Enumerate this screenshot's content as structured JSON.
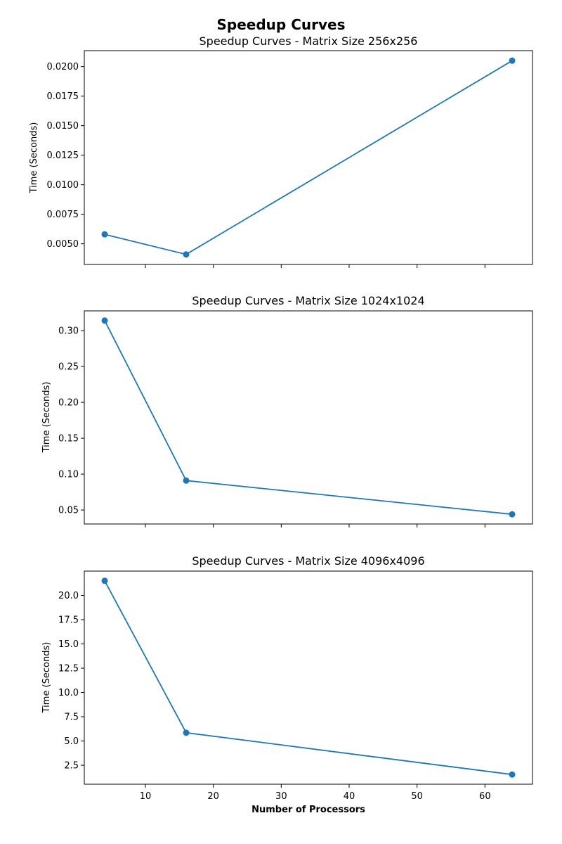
{
  "figure": {
    "title": "Speedup Curves",
    "xlabel": "Number of Processors",
    "series_color": "#1f77b4"
  },
  "chart_data": [
    {
      "type": "line",
      "title": "Speedup Curves - Matrix Size 256x256",
      "xlabel": "",
      "ylabel": "Time (Seconds)",
      "x": [
        4,
        16,
        64
      ],
      "y": [
        0.0058,
        0.0041,
        0.0205
      ],
      "xlim": [
        1,
        67
      ],
      "ylim": [
        0.00325,
        0.02135
      ],
      "xticks": [
        10,
        20,
        30,
        40,
        50,
        60
      ],
      "xtick_labels_visible": false,
      "yticks": [
        0.005,
        0.0075,
        0.01,
        0.0125,
        0.015,
        0.0175,
        0.02
      ],
      "ytick_labels": [
        "0.0050",
        "0.0075",
        "0.0100",
        "0.0125",
        "0.0150",
        "0.0175",
        "0.0200"
      ],
      "grid": false
    },
    {
      "type": "line",
      "title": "Speedup Curves - Matrix Size 1024x1024",
      "xlabel": "",
      "ylabel": "Time (Seconds)",
      "x": [
        4,
        16,
        64
      ],
      "y": [
        0.314,
        0.091,
        0.044
      ],
      "xlim": [
        1,
        67
      ],
      "ylim": [
        0.0305,
        0.3275
      ],
      "xticks": [
        10,
        20,
        30,
        40,
        50,
        60
      ],
      "xtick_labels_visible": false,
      "yticks": [
        0.05,
        0.1,
        0.15,
        0.2,
        0.25,
        0.3
      ],
      "ytick_labels": [
        "0.05",
        "0.10",
        "0.15",
        "0.20",
        "0.25",
        "0.30"
      ],
      "grid": false
    },
    {
      "type": "line",
      "title": "Speedup Curves - Matrix Size 4096x4096",
      "xlabel": "Number of Processors",
      "ylabel": "Time (Seconds)",
      "x": [
        4,
        16,
        64
      ],
      "y": [
        21.5,
        5.85,
        1.55
      ],
      "xlim": [
        1,
        67
      ],
      "ylim": [
        0.55,
        22.5
      ],
      "xticks": [
        10,
        20,
        30,
        40,
        50,
        60
      ],
      "xtick_labels_visible": true,
      "xtick_labels": [
        "10",
        "20",
        "30",
        "40",
        "50",
        "60"
      ],
      "yticks": [
        2.5,
        5,
        7.5,
        10,
        12.5,
        15,
        17.5,
        20
      ],
      "ytick_labels": [
        "2.5",
        "5.0",
        "7.5",
        "10.0",
        "12.5",
        "15.0",
        "17.5",
        "20.0"
      ],
      "grid": false
    }
  ]
}
